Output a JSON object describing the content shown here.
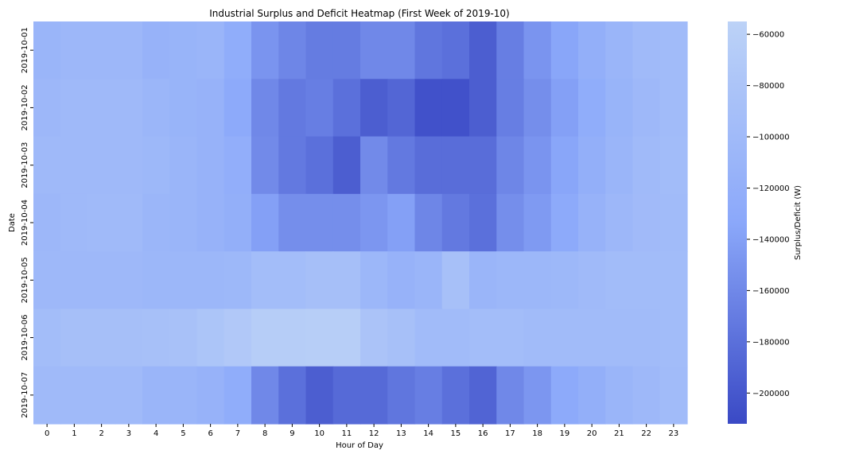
{
  "chart_data": {
    "type": "heatmap",
    "title": "Industrial Surplus and Deficit Heatmap (First Week of 2019-10)",
    "xlabel": "Hour of Day",
    "ylabel": "Date",
    "colorbar_label": "Surplus/Deficit (W)",
    "x": [
      0,
      1,
      2,
      3,
      4,
      5,
      6,
      7,
      8,
      9,
      10,
      11,
      12,
      13,
      14,
      15,
      16,
      17,
      18,
      19,
      20,
      21,
      22,
      23
    ],
    "y": [
      "2019-10-01",
      "2019-10-02",
      "2019-10-03",
      "2019-10-04",
      "2019-10-05",
      "2019-10-06",
      "2019-10-07"
    ],
    "values": [
      [
        -110000,
        -105000,
        -105000,
        -105000,
        -115000,
        -112000,
        -110000,
        -125000,
        -150000,
        -162000,
        -170000,
        -170000,
        -160000,
        -160000,
        -175000,
        -180000,
        -195000,
        -168000,
        -150000,
        -135000,
        -120000,
        -110000,
        -100000,
        -98000
      ],
      [
        -105000,
        -102000,
        -102000,
        -102000,
        -108000,
        -112000,
        -115000,
        -130000,
        -160000,
        -172000,
        -168000,
        -180000,
        -195000,
        -188000,
        -205000,
        -205000,
        -195000,
        -168000,
        -155000,
        -140000,
        -125000,
        -112000,
        -103000,
        -98000
      ],
      [
        -102000,
        -102000,
        -102000,
        -102000,
        -104000,
        -110000,
        -115000,
        -122000,
        -158000,
        -172000,
        -180000,
        -195000,
        -158000,
        -172000,
        -182000,
        -182000,
        -182000,
        -162000,
        -150000,
        -135000,
        -120000,
        -110000,
        -100000,
        -96000
      ],
      [
        -105000,
        -102000,
        -100000,
        -100000,
        -108000,
        -110000,
        -115000,
        -120000,
        -140000,
        -155000,
        -155000,
        -155000,
        -148000,
        -140000,
        -162000,
        -172000,
        -180000,
        -155000,
        -145000,
        -130000,
        -115000,
        -105000,
        -99000,
        -98000
      ],
      [
        -103000,
        -103000,
        -103000,
        -103000,
        -106000,
        -106000,
        -106000,
        -104000,
        -95000,
        -95000,
        -90000,
        -90000,
        -106000,
        -115000,
        -110000,
        -88000,
        -110000,
        -106000,
        -106000,
        -104000,
        -100000,
        -97000,
        -97000,
        -97000
      ],
      [
        -95000,
        -90000,
        -90000,
        -90000,
        -88000,
        -87000,
        -80000,
        -73000,
        -65000,
        -65000,
        -63000,
        -63000,
        -83000,
        -88000,
        -98000,
        -98000,
        -95000,
        -95000,
        -98000,
        -98000,
        -98000,
        -98000,
        -98000,
        -97000
      ],
      [
        -100000,
        -100000,
        -100000,
        -100000,
        -110000,
        -110000,
        -115000,
        -125000,
        -160000,
        -180000,
        -195000,
        -185000,
        -185000,
        -175000,
        -168000,
        -180000,
        -190000,
        -160000,
        -148000,
        -130000,
        -120000,
        -110000,
        -103000,
        -98000
      ]
    ],
    "colorbar": {
      "vmin": -212000,
      "vmax": -55000,
      "ticks": [
        -60000,
        -80000,
        -100000,
        -120000,
        -140000,
        -160000,
        -180000,
        -200000
      ],
      "tick_labels": [
        "−60000",
        "−80000",
        "−100000",
        "−120000",
        "−140000",
        "−160000",
        "−180000",
        "−200000"
      ]
    },
    "colormap": {
      "low": "#3a49c5",
      "mid": "#8ba8fa",
      "high": "#bcd2f7"
    }
  }
}
